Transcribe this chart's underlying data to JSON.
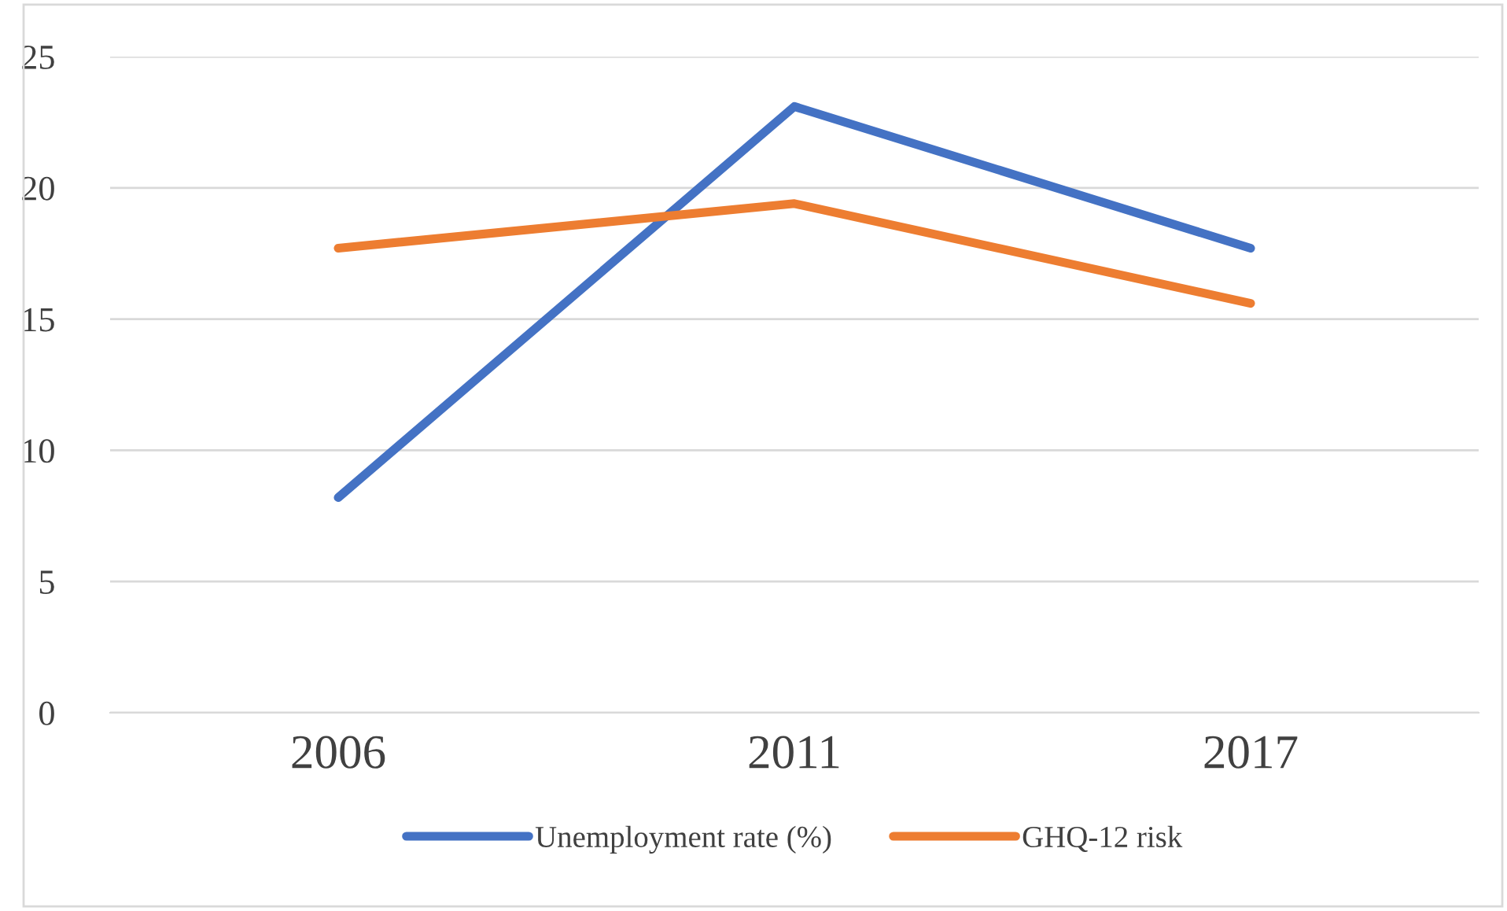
{
  "chart_data": {
    "type": "line",
    "categories": [
      "2006",
      "2011",
      "2017"
    ],
    "series": [
      {
        "name": "Unemployment rate (%)",
        "color": "#4472c4",
        "values": [
          8.2,
          23.1,
          17.7
        ]
      },
      {
        "name": "GHQ-12 risk",
        "color": "#ed7d31",
        "values": [
          17.7,
          19.4,
          15.6
        ]
      }
    ],
    "ylim": [
      0,
      25
    ],
    "yticks": [
      0,
      5,
      10,
      15,
      20,
      25
    ],
    "grid": "y",
    "legend": "bottom",
    "marker": "none",
    "line_style": "solid"
  }
}
